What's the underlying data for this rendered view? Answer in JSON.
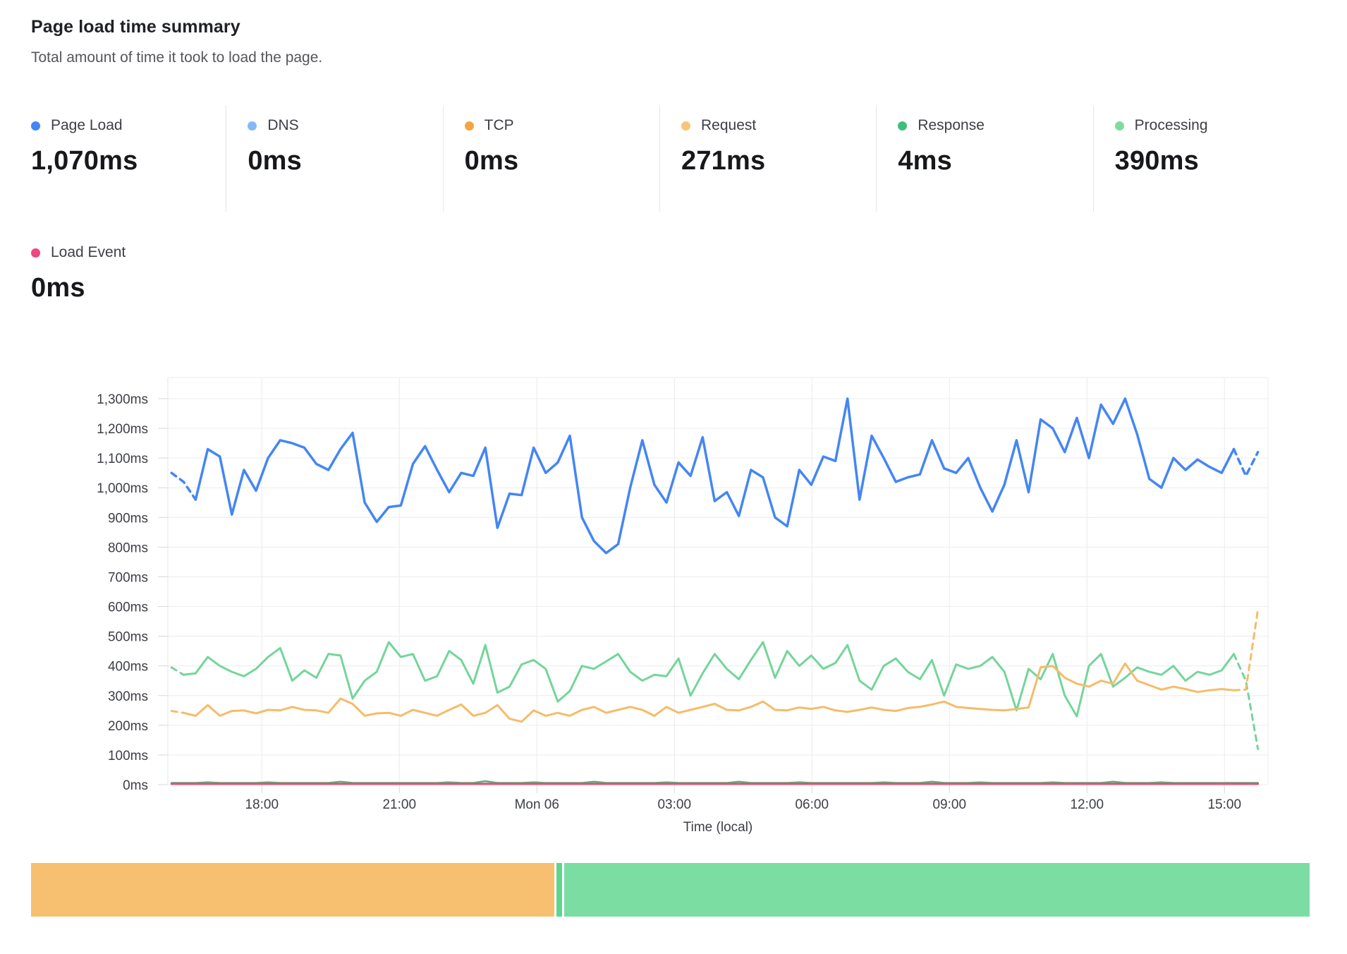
{
  "header": {
    "title": "Page load time summary",
    "subtitle": "Total amount of time it took to load the page."
  },
  "metrics": [
    {
      "id": "page-load",
      "label": "Page Load",
      "value": "1,070ms",
      "color": "#4285f4"
    },
    {
      "id": "dns",
      "label": "DNS",
      "value": "0ms",
      "color": "#85b8f8"
    },
    {
      "id": "tcp",
      "label": "TCP",
      "value": "0ms",
      "color": "#f5a53f"
    },
    {
      "id": "request",
      "label": "Request",
      "value": "271ms",
      "color": "#f7c579"
    },
    {
      "id": "response",
      "label": "Response",
      "value": "4ms",
      "color": "#3fbe7b"
    },
    {
      "id": "processing",
      "label": "Processing",
      "value": "390ms",
      "color": "#81d9a5"
    },
    {
      "id": "load-event",
      "label": "Load Event",
      "value": "0ms",
      "color": "#f0457e"
    }
  ],
  "chart_data": {
    "type": "line",
    "title": "Page load time summary",
    "xlabel": "Time (local)",
    "ylabel": "",
    "ylim": [
      0,
      1371
    ],
    "grid": true,
    "legend_position": "summary-cards-above-chart",
    "y_ticks": [
      {
        "v": 1300,
        "label": "1,300ms"
      },
      {
        "v": 1200,
        "label": "1,200ms"
      },
      {
        "v": 1100,
        "label": "1,100ms"
      },
      {
        "v": 1000,
        "label": "1,000ms"
      },
      {
        "v": 900,
        "label": "900ms"
      },
      {
        "v": 800,
        "label": "800ms"
      },
      {
        "v": 700,
        "label": "700ms"
      },
      {
        "v": 600,
        "label": "600ms"
      },
      {
        "v": 500,
        "label": "500ms"
      },
      {
        "v": 400,
        "label": "400ms"
      },
      {
        "v": 300,
        "label": "300ms"
      },
      {
        "v": 200,
        "label": "200ms"
      },
      {
        "v": 100,
        "label": "100ms"
      },
      {
        "v": 0,
        "label": "0ms"
      }
    ],
    "x_range_hours": 24,
    "x_ticks": [
      {
        "t": 2.05,
        "label": "18:00"
      },
      {
        "t": 5.05,
        "label": "21:00"
      },
      {
        "t": 8.05,
        "label": "Mon 06"
      },
      {
        "t": 11.05,
        "label": "03:00"
      },
      {
        "t": 14.05,
        "label": "06:00"
      },
      {
        "t": 17.05,
        "label": "09:00"
      },
      {
        "t": 20.05,
        "label": "12:00"
      },
      {
        "t": 23.05,
        "label": "15:00"
      }
    ],
    "series": [
      {
        "name": "DNS",
        "color": "#85b8f8",
        "width": 2.5,
        "dash_head": 0,
        "dash_tail": 0,
        "flat": 2
      },
      {
        "name": "TCP",
        "color": "#f5a53f",
        "width": 2.5,
        "dash_head": 0,
        "dash_tail": 0,
        "flat": 2
      },
      {
        "name": "Response",
        "color": "#3fbe7b",
        "width": 2.5,
        "dash_head": 0,
        "dash_tail": 0,
        "values": [
          6,
          6,
          6,
          8,
          6,
          6,
          6,
          6,
          8,
          6,
          6,
          6,
          6,
          6,
          10,
          6,
          6,
          6,
          6,
          6,
          6,
          6,
          6,
          8,
          6,
          6,
          12,
          6,
          6,
          6,
          8,
          6,
          6,
          6,
          6,
          10,
          6,
          6,
          6,
          6,
          6,
          8,
          6,
          6,
          6,
          6,
          6,
          10,
          6,
          6,
          6,
          6,
          8,
          6,
          6,
          6,
          6,
          6,
          6,
          8,
          6,
          6,
          6,
          10,
          6,
          6,
          6,
          8,
          6,
          6,
          6,
          6,
          6,
          8,
          6,
          6,
          6,
          6,
          10,
          6,
          6,
          6,
          8,
          6,
          6,
          6,
          6,
          6,
          6,
          6,
          6
        ]
      },
      {
        "name": "Processing",
        "color": "#74d59a",
        "width": 3,
        "dash_head": 1,
        "dash_tail": 2,
        "values": [
          395,
          370,
          375,
          430,
          400,
          380,
          365,
          390,
          430,
          460,
          350,
          385,
          360,
          440,
          435,
          290,
          350,
          380,
          480,
          430,
          440,
          350,
          365,
          450,
          420,
          340,
          470,
          310,
          330,
          405,
          420,
          390,
          280,
          315,
          400,
          390,
          415,
          440,
          380,
          350,
          370,
          365,
          425,
          300,
          375,
          440,
          390,
          355,
          420,
          480,
          360,
          450,
          400,
          435,
          390,
          410,
          470,
          350,
          320,
          400,
          425,
          380,
          355,
          420,
          300,
          405,
          390,
          400,
          430,
          380,
          250,
          390,
          355,
          440,
          300,
          230,
          400,
          440,
          330,
          360,
          395,
          380,
          370,
          400,
          350,
          380,
          370,
          385,
          440,
          350,
          120
        ]
      },
      {
        "name": "Request",
        "color": "#f5bc69",
        "width": 3,
        "dash_head": 1,
        "dash_tail": 2,
        "values": [
          248,
          242,
          232,
          268,
          232,
          248,
          250,
          240,
          252,
          250,
          262,
          252,
          250,
          242,
          290,
          272,
          232,
          240,
          242,
          232,
          252,
          242,
          232,
          252,
          270,
          232,
          242,
          268,
          222,
          212,
          250,
          232,
          242,
          232,
          252,
          262,
          242,
          252,
          262,
          252,
          232,
          262,
          242,
          252,
          262,
          272,
          252,
          250,
          262,
          280,
          252,
          250,
          260,
          255,
          262,
          250,
          245,
          252,
          260,
          252,
          248,
          258,
          262,
          270,
          280,
          262,
          258,
          255,
          252,
          250,
          255,
          260,
          395,
          400,
          360,
          340,
          330,
          350,
          340,
          408,
          350,
          335,
          320,
          330,
          322,
          312,
          318,
          322,
          318,
          320,
          590
        ]
      },
      {
        "name": "Page Load",
        "color": "#4486f4",
        "width": 3.5,
        "dash_head": 2,
        "dash_tail": 2,
        "values": [
          1050,
          1020,
          960,
          1130,
          1105,
          910,
          1060,
          990,
          1100,
          1160,
          1150,
          1135,
          1080,
          1060,
          1130,
          1185,
          950,
          885,
          935,
          940,
          1080,
          1140,
          1060,
          985,
          1050,
          1040,
          1135,
          865,
          980,
          975,
          1135,
          1050,
          1085,
          1175,
          900,
          820,
          780,
          810,
          1000,
          1160,
          1010,
          950,
          1085,
          1040,
          1170,
          955,
          985,
          905,
          1060,
          1035,
          900,
          870,
          1060,
          1010,
          1105,
          1090,
          1300,
          960,
          1175,
          1100,
          1020,
          1035,
          1045,
          1160,
          1065,
          1050,
          1100,
          1000,
          920,
          1010,
          1160,
          985,
          1230,
          1200,
          1120,
          1235,
          1100,
          1280,
          1215,
          1300,
          1180,
          1030,
          1000,
          1100,
          1060,
          1095,
          1070,
          1050,
          1130,
          1040,
          1120
        ]
      },
      {
        "name": "Load Event",
        "color": "#ed4880",
        "width": 3,
        "dash_head": 0,
        "dash_tail": 0,
        "flat": 3
      }
    ]
  },
  "timeline_bar": {
    "segments": [
      {
        "color": "#f7c070",
        "pct": 40.9
      },
      {
        "color": "#5fd48e",
        "pct": 0.45
      },
      {
        "color": "#7cdda3",
        "pct": 58.2
      }
    ]
  }
}
